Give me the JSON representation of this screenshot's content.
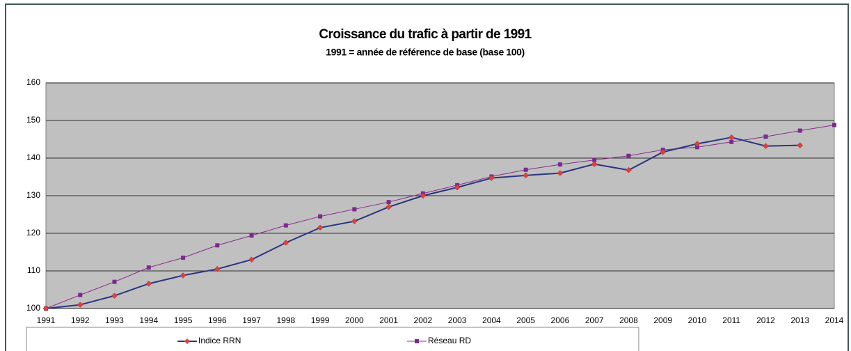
{
  "chart_data": {
    "type": "line",
    "title": "Croissance du trafic à partir de 1991",
    "subtitle": "1991 = année de référence de base (base 100)",
    "categories": [
      "1991",
      "1992",
      "1993",
      "1994",
      "1995",
      "1996",
      "1997",
      "1998",
      "1999",
      "2000",
      "2001",
      "2002",
      "2003",
      "2004",
      "2005",
      "2006",
      "2007",
      "2008",
      "2009",
      "2010",
      "2011",
      "2012",
      "2013",
      "2014"
    ],
    "series": [
      {
        "name": "Indice RRN",
        "color": "#2a3580",
        "marker_color": "#e0403a",
        "marker": "diamond",
        "values": [
          100,
          101,
          103.4,
          106.6,
          108.8,
          110.5,
          113,
          117.5,
          121.5,
          123.2,
          127,
          130,
          132.2,
          134.7,
          135.4,
          136,
          138.4,
          136.8,
          141.6,
          143.8,
          145.5,
          143.2,
          143.4,
          null
        ]
      },
      {
        "name": "Réseau RD",
        "color": "#8a2a8a",
        "marker_color": "#7a2a8c",
        "marker": "square",
        "values": [
          100,
          103.6,
          107.1,
          110.9,
          113.5,
          116.8,
          119.4,
          122.1,
          124.5,
          126.4,
          128.3,
          130.6,
          132.8,
          135.1,
          136.9,
          138.3,
          139.5,
          140.6,
          142.2,
          142.9,
          144.3,
          145.7,
          147.3,
          148.8
        ]
      }
    ],
    "ylim": [
      100,
      160
    ],
    "yticks": [
      100,
      110,
      120,
      130,
      140,
      150,
      160
    ],
    "grid": true,
    "legend": "bottom"
  }
}
